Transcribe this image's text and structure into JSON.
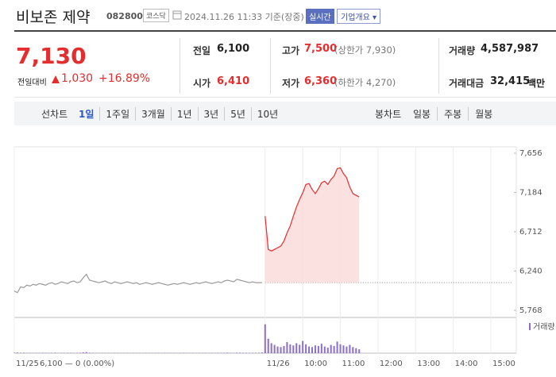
{
  "header": {
    "name": "비보존 제약",
    "code": "082800",
    "market": "코스닥",
    "asof": "2024.11.26 11:33 기준(장중)",
    "realtime": "실시간",
    "company_button": "기업개요"
  },
  "price": {
    "current": "7,130",
    "change_label": "전일대비",
    "change": "1,030",
    "change_pct": "+16.89%"
  },
  "stats": [
    {
      "label": "전일",
      "value": "6,100"
    },
    {
      "label": "고가",
      "value": "7,500",
      "extra": "(상한가 7,930)"
    },
    {
      "label": "거래량",
      "value": "4,587,987"
    },
    {
      "label": "시가",
      "value": "6,410"
    },
    {
      "label": "저가",
      "value": "6,360",
      "extra": "(하한가 4,270)"
    },
    {
      "label": "거래대금",
      "value": "32,415",
      "unit": "백만"
    }
  ],
  "tabs": {
    "line_label": "선차트",
    "periods": [
      "1일",
      "1주일",
      "3개월",
      "1년",
      "3년",
      "5년",
      "10년"
    ],
    "selected_period": 0,
    "candle_label": "봉차트",
    "candle_periods": [
      "일봉",
      "주봉",
      "월봉"
    ]
  },
  "chart_data": {
    "type": "line",
    "x_note": "6,100 — 0 (0.00%)",
    "categories": [
      "11/25",
      null,
      null,
      null,
      null,
      null,
      null,
      null,
      null,
      null,
      null,
      null,
      null,
      null,
      null,
      null,
      null,
      null,
      null,
      null,
      null,
      null,
      null,
      null,
      null,
      null,
      null,
      null,
      null,
      null,
      null,
      null,
      null,
      null,
      null,
      null,
      null,
      null,
      null,
      null,
      null,
      null,
      null,
      null,
      null,
      null,
      null,
      null,
      null,
      null,
      null,
      null,
      null,
      null,
      null,
      null,
      null,
      null,
      null,
      null,
      null,
      null,
      null,
      null,
      null,
      null,
      null,
      null,
      null,
      null,
      null,
      null,
      null,
      null,
      null,
      null,
      null,
      null,
      null,
      null,
      "11/26",
      null,
      null,
      null,
      null,
      null,
      null,
      null,
      null,
      null,
      null,
      null,
      "10:00",
      null,
      null,
      null,
      null,
      null,
      null,
      null,
      null,
      null,
      null,
      null,
      "11:00",
      null,
      null,
      null,
      null,
      null,
      null,
      null,
      null,
      null,
      null,
      null,
      "12:00",
      null,
      null,
      null,
      null,
      null,
      null,
      null,
      null,
      null,
      null,
      null,
      "13:00",
      null,
      null,
      null,
      null,
      null,
      null,
      null,
      null,
      null,
      null,
      null,
      "14:00",
      null,
      null,
      null,
      null,
      null,
      null,
      null,
      null,
      null,
      null,
      null,
      "15:00",
      null,
      null,
      null,
      null,
      null,
      null
    ],
    "series": [
      {
        "color": "#9a9a9a",
        "values": [
          6000,
          5980,
          6050,
          6040,
          6070,
          6060,
          6080,
          6070,
          6090,
          6080,
          6070,
          6090,
          6100,
          6080,
          6090,
          6110,
          6100,
          6090,
          6110,
          6120,
          6100,
          6110,
          6160,
          6200,
          6130,
          6120,
          6110,
          6100,
          6110,
          6120,
          6100,
          6090,
          6110,
          6100,
          6090,
          6100,
          6110,
          6100,
          6090,
          6100,
          6080,
          6090,
          6100,
          6090,
          6080,
          6090,
          6100,
          6090,
          6080,
          6070,
          6080,
          6090,
          6080,
          6090,
          6100,
          6090,
          6080,
          6090,
          6100,
          6090,
          6100,
          6110,
          6100,
          6090,
          6100,
          6110,
          6100,
          6120,
          6130,
          6120,
          6110,
          6140,
          6130,
          6120,
          6110,
          6100,
          6110,
          6100,
          6100,
          6100,
          null,
          null,
          null,
          null,
          null,
          null,
          null,
          null,
          null,
          null,
          null,
          null,
          null,
          null,
          null,
          null,
          null,
          null,
          null,
          null,
          null,
          null,
          null,
          null,
          null,
          null,
          null,
          null,
          null,
          null,
          null,
          null,
          null,
          null,
          null,
          null,
          null,
          null,
          null,
          null,
          null,
          null,
          null,
          null,
          null,
          null,
          null,
          null,
          null,
          null,
          null,
          null,
          null,
          null,
          null,
          null,
          null,
          null,
          null,
          null,
          null,
          null,
          null,
          null,
          null,
          null,
          null,
          null,
          null,
          null,
          null,
          null,
          null,
          null,
          null,
          null,
          null,
          null,
          null
        ]
      },
      {
        "color": "#e52d2d",
        "area_color": "#fbdada",
        "values": [
          null,
          null,
          null,
          null,
          null,
          null,
          null,
          null,
          null,
          null,
          null,
          null,
          null,
          null,
          null,
          null,
          null,
          null,
          null,
          null,
          null,
          null,
          null,
          null,
          null,
          null,
          null,
          null,
          null,
          null,
          null,
          null,
          null,
          null,
          null,
          null,
          null,
          null,
          null,
          null,
          null,
          null,
          null,
          null,
          null,
          null,
          null,
          null,
          null,
          null,
          null,
          null,
          null,
          null,
          null,
          null,
          null,
          null,
          null,
          null,
          null,
          null,
          null,
          null,
          null,
          null,
          null,
          null,
          null,
          null,
          null,
          null,
          null,
          null,
          null,
          null,
          null,
          null,
          null,
          null,
          6900,
          6500,
          6480,
          6500,
          6520,
          6540,
          6600,
          6700,
          6780,
          6900,
          7010,
          7100,
          7180,
          7280,
          7290,
          7220,
          7170,
          7230,
          7300,
          7320,
          7280,
          7340,
          7380,
          7470,
          7480,
          7410,
          7360,
          7250,
          7170,
          7150,
          7130,
          null,
          null,
          null,
          null,
          null,
          null,
          null,
          null,
          null,
          null,
          null,
          null,
          null,
          null,
          null,
          null,
          null,
          null,
          null,
          null,
          null,
          null,
          null,
          null,
          null,
          null,
          null,
          null,
          null,
          null,
          null,
          null,
          null,
          null,
          null,
          null,
          null,
          null,
          null,
          null,
          null,
          null,
          null,
          null,
          null,
          null,
          null,
          null
        ]
      }
    ],
    "baseline": 6100,
    "ylim": [
      5682,
      7732
    ],
    "yticks": [
      {
        "value": 7656,
        "label": "7,656"
      },
      {
        "value": 7184,
        "label": "7,184"
      },
      {
        "value": 6712,
        "label": "6,712"
      },
      {
        "value": 6240,
        "label": "6,240"
      },
      {
        "value": 5768,
        "label": "5,768"
      }
    ],
    "volume": {
      "name": "거래량",
      "color": "#8b6fc9",
      "ylim": [
        0,
        600000
      ],
      "values": [
        8000,
        12000,
        6000,
        9000,
        5000,
        7000,
        4000,
        6000,
        5000,
        8000,
        7000,
        5000,
        6000,
        9000,
        4000,
        6000,
        5000,
        7000,
        6000,
        5000,
        6000,
        8000,
        15000,
        20000,
        9000,
        6000,
        5000,
        4000,
        6000,
        5000,
        5000,
        4000,
        6000,
        5000,
        4000,
        5000,
        6000,
        4000,
        5000,
        4000,
        5000,
        4000,
        6000,
        5000,
        4000,
        5000,
        6000,
        4000,
        5000,
        4000,
        5000,
        6000,
        4000,
        5000,
        6000,
        4000,
        5000,
        6000,
        4000,
        5000,
        6000,
        7000,
        5000,
        6000,
        5000,
        7000,
        6000,
        8000,
        9000,
        7000,
        6000,
        9000,
        8000,
        7000,
        6000,
        5000,
        7000,
        6000,
        8000,
        12000,
        520000,
        260000,
        180000,
        150000,
        120000,
        110000,
        130000,
        200000,
        160000,
        140000,
        180000,
        150000,
        220000,
        160000,
        120000,
        110000,
        140000,
        130000,
        170000,
        120000,
        100000,
        150000,
        130000,
        210000,
        160000,
        140000,
        120000,
        150000,
        110000,
        90000,
        70000,
        null,
        null,
        null,
        null,
        null,
        null,
        null,
        null,
        null,
        null,
        null,
        null,
        null,
        null,
        null,
        null,
        null,
        null,
        null,
        null,
        null,
        null,
        null,
        null,
        null,
        null,
        null,
        null,
        null,
        null,
        null,
        null,
        null,
        null,
        null,
        null,
        null,
        null,
        null,
        null,
        null,
        null,
        null,
        null,
        null,
        null,
        null,
        null
      ]
    }
  }
}
